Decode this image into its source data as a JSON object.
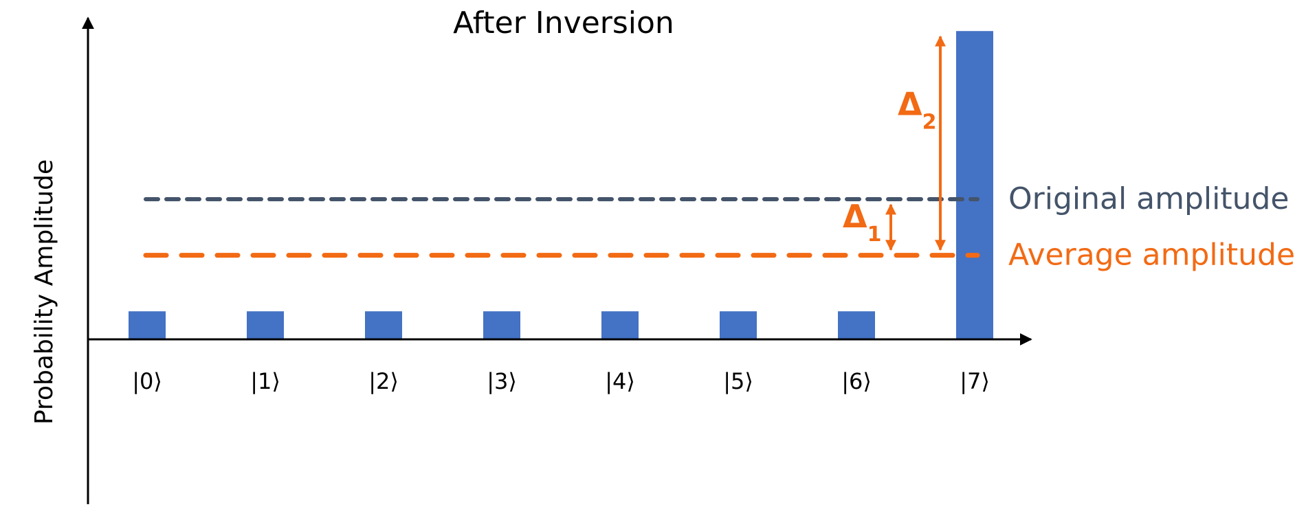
{
  "chart_data": {
    "type": "bar",
    "title": "After Inversion",
    "ylabel": "Probability Amplitude",
    "xlabel": "",
    "categories": [
      "|0⟩",
      "|1⟩",
      "|2⟩",
      "|3⟩",
      "|4⟩",
      "|5⟩",
      "|6⟩",
      "|7⟩"
    ],
    "values": [
      0.1,
      0.1,
      0.1,
      0.1,
      0.1,
      0.1,
      0.1,
      1.1
    ],
    "ylim": [
      -0.6,
      1.2
    ],
    "grid": false,
    "reference_lines": [
      {
        "name": "Original amplitude",
        "value": 0.5,
        "color": "#44546a"
      },
      {
        "name": "Average amplitude",
        "value": 0.3,
        "color": "#f26a14"
      }
    ],
    "annotations": [
      {
        "symbol": "Δ",
        "subscript": "1",
        "category": "|6⟩",
        "from": 0.3,
        "to": 0.5
      },
      {
        "symbol": "Δ",
        "subscript": "2",
        "category": "|7⟩",
        "from": 0.3,
        "to": 1.1
      }
    ]
  },
  "colors": {
    "bar": "#4472c4",
    "axis": "#000000",
    "accent": "#f26a14",
    "original": "#44546a"
  }
}
